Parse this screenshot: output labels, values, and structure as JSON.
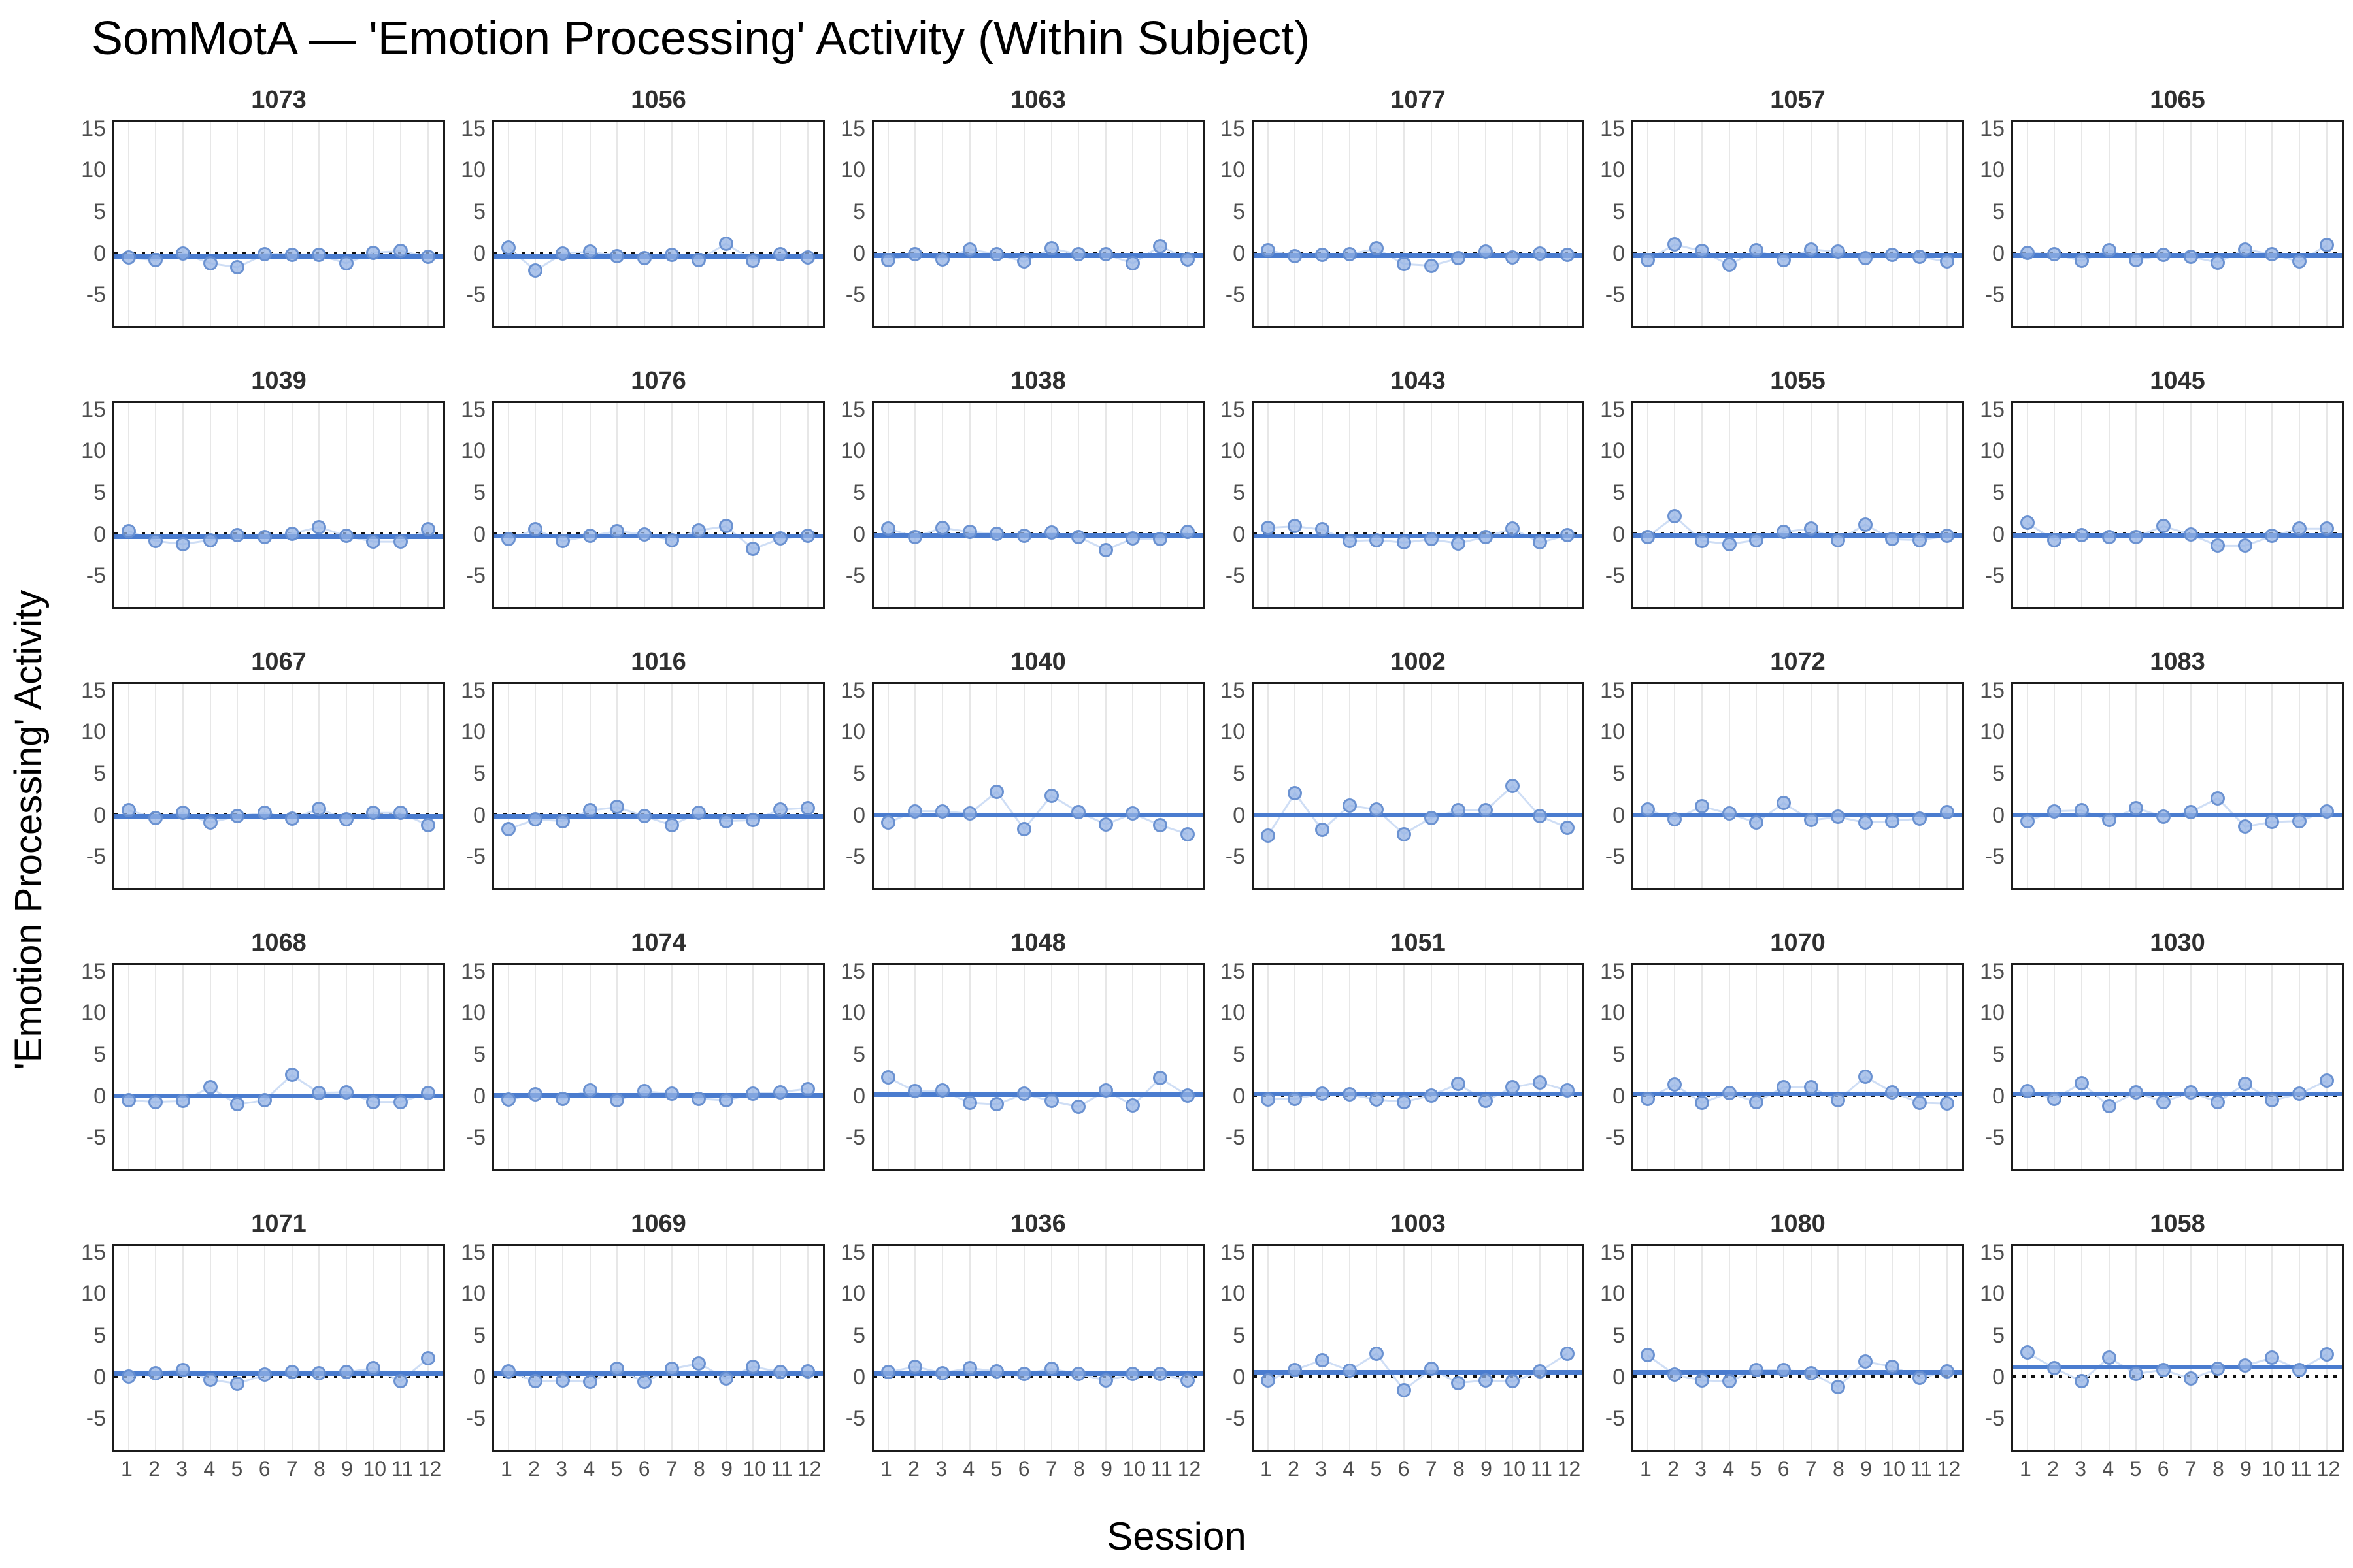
{
  "title": "SomMotA — 'Emotion Processing' Activity (Within Subject)",
  "x_axis_label": "Session",
  "y_axis_label": "'Emotion Processing' Activity",
  "chart_data": {
    "type": "scatter",
    "layout": "facet-grid 6 cols x 5 rows, one panel per subject",
    "x": [
      1,
      2,
      3,
      4,
      5,
      6,
      7,
      8,
      9,
      10,
      11,
      12
    ],
    "x_tick_labels": [
      "1",
      "2",
      "3",
      "4",
      "5",
      "6",
      "7",
      "8",
      "9",
      "10",
      "11",
      "12"
    ],
    "y_tick_values": [
      15,
      10,
      5,
      0,
      -5
    ],
    "y_tick_labels": [
      "15",
      "10",
      "5",
      "0",
      "-5"
    ],
    "ylim": [
      -9,
      16
    ],
    "grid": "vertical session gridlines only",
    "zero_reference_line": 0,
    "legend": "none",
    "facets": [
      {
        "id": "1073",
        "values": [
          -0.6,
          -0.9,
          -0.1,
          -1.3,
          -1.8,
          -0.2,
          -0.3,
          -0.3,
          -1.3,
          0.0,
          0.2,
          -0.5
        ],
        "trend": -0.5
      },
      {
        "id": "1056",
        "values": [
          0.6,
          -2.2,
          -0.1,
          0.1,
          -0.4,
          -0.7,
          -0.3,
          -0.9,
          1.1,
          -1.0,
          -0.2,
          -0.6
        ],
        "trend": -0.45
      },
      {
        "id": "1063",
        "values": [
          -0.9,
          -0.2,
          -0.8,
          0.4,
          -0.2,
          -1.1,
          0.5,
          -0.2,
          -0.2,
          -1.3,
          0.8,
          -0.8
        ],
        "trend": -0.4
      },
      {
        "id": "1077",
        "values": [
          0.3,
          -0.4,
          -0.3,
          -0.2,
          0.5,
          -1.4,
          -1.6,
          -0.7,
          0.1,
          -0.6,
          -0.1,
          -0.3
        ],
        "trend": -0.4
      },
      {
        "id": "1057",
        "values": [
          -0.9,
          1.0,
          0.2,
          -1.5,
          0.3,
          -0.9,
          0.4,
          0.1,
          -0.7,
          -0.3,
          -0.5,
          -1.1
        ],
        "trend": -0.4
      },
      {
        "id": "1065",
        "values": [
          0.0,
          -0.2,
          -1.0,
          0.3,
          -0.9,
          -0.3,
          -0.5,
          -1.2,
          0.4,
          -0.2,
          -1.1,
          0.9
        ],
        "trend": -0.4
      },
      {
        "id": "1039",
        "values": [
          0.3,
          -0.9,
          -1.3,
          -0.8,
          -0.2,
          -0.4,
          0.0,
          0.8,
          -0.3,
          -1.0,
          -1.0,
          0.5
        ],
        "trend": -0.4
      },
      {
        "id": "1076",
        "values": [
          -0.7,
          0.5,
          -0.9,
          -0.3,
          0.3,
          -0.1,
          -0.8,
          0.4,
          0.9,
          -1.9,
          -0.6,
          -0.3
        ],
        "trend": -0.3
      },
      {
        "id": "1038",
        "values": [
          0.6,
          -0.4,
          0.7,
          0.2,
          0.0,
          -0.3,
          0.1,
          -0.4,
          -2.0,
          -0.6,
          -0.7,
          0.2
        ],
        "trend": -0.25
      },
      {
        "id": "1043",
        "values": [
          0.7,
          0.9,
          0.5,
          -0.9,
          -0.8,
          -1.1,
          -0.7,
          -1.2,
          -0.4,
          0.6,
          -1.1,
          -0.2
        ],
        "trend": -0.3
      },
      {
        "id": "1055",
        "values": [
          -0.4,
          2.1,
          -0.9,
          -1.3,
          -0.8,
          0.2,
          0.6,
          -0.8,
          1.1,
          -0.7,
          -0.8,
          -0.3
        ],
        "trend": -0.25
      },
      {
        "id": "1045",
        "values": [
          1.3,
          -0.8,
          -0.2,
          -0.4,
          -0.4,
          0.9,
          -0.1,
          -1.5,
          -1.5,
          -0.3,
          0.6,
          0.6
        ],
        "trend": -0.2
      },
      {
        "id": "1067",
        "values": [
          0.5,
          -0.4,
          0.2,
          -1.0,
          -0.2,
          0.2,
          -0.5,
          0.7,
          -0.6,
          0.2,
          0.2,
          -1.3
        ],
        "trend": -0.2
      },
      {
        "id": "1016",
        "values": [
          -1.8,
          -0.6,
          -0.8,
          0.5,
          0.9,
          -0.2,
          -1.3,
          0.2,
          -0.8,
          -0.7,
          0.6,
          0.8
        ],
        "trend": -0.25
      },
      {
        "id": "1040",
        "values": [
          -1.0,
          0.4,
          0.4,
          0.1,
          2.8,
          -1.8,
          2.3,
          0.3,
          -1.2,
          0.1,
          -1.3,
          -2.4
        ],
        "trend": -0.1
      },
      {
        "id": "1002",
        "values": [
          -2.6,
          2.6,
          -1.9,
          1.1,
          0.6,
          -2.4,
          -0.4,
          0.5,
          0.5,
          3.5,
          -0.2,
          -1.6
        ],
        "trend": -0.1
      },
      {
        "id": "1072",
        "values": [
          0.6,
          -0.6,
          1.0,
          0.1,
          -1.0,
          1.4,
          -0.7,
          -0.3,
          -1.0,
          -0.8,
          -0.5,
          0.3
        ],
        "trend": -0.1
      },
      {
        "id": "1083",
        "values": [
          -0.8,
          0.4,
          0.5,
          -0.7,
          0.8,
          -0.3,
          0.3,
          2.0,
          -1.5,
          -0.9,
          -0.8,
          0.4
        ],
        "trend": -0.05
      },
      {
        "id": "1068",
        "values": [
          -0.6,
          -0.8,
          -0.7,
          1.0,
          -1.1,
          -0.6,
          2.5,
          0.3,
          0.4,
          -0.8,
          -0.8,
          0.3
        ],
        "trend": -0.05
      },
      {
        "id": "1074",
        "values": [
          -0.5,
          0.1,
          -0.4,
          0.6,
          -0.6,
          0.5,
          0.2,
          -0.4,
          -0.6,
          0.2,
          0.4,
          0.8
        ],
        "trend": 0.0
      },
      {
        "id": "1048",
        "values": [
          2.2,
          0.5,
          0.6,
          -0.9,
          -1.1,
          0.2,
          -0.7,
          -1.4,
          0.6,
          -1.2,
          2.1,
          0.0
        ],
        "trend": 0.1
      },
      {
        "id": "1051",
        "values": [
          -0.5,
          -0.4,
          0.2,
          0.1,
          -0.5,
          -0.8,
          0.0,
          1.4,
          -0.7,
          1.0,
          1.6,
          0.6
        ],
        "trend": 0.15
      },
      {
        "id": "1070",
        "values": [
          -0.4,
          1.3,
          -0.9,
          0.3,
          -0.8,
          1.0,
          1.0,
          -0.6,
          2.3,
          0.4,
          -0.9,
          -1.0
        ],
        "trend": 0.2
      },
      {
        "id": "1030",
        "values": [
          0.5,
          -0.4,
          1.5,
          -1.3,
          0.4,
          -0.8,
          0.4,
          -0.8,
          1.4,
          -0.6,
          0.2,
          1.8
        ],
        "trend": 0.2
      },
      {
        "id": "1071",
        "values": [
          0.0,
          0.4,
          0.8,
          -0.4,
          -0.9,
          0.2,
          0.5,
          0.4,
          0.5,
          1.0,
          -0.6,
          2.2
        ],
        "trend": 0.3
      },
      {
        "id": "1069",
        "values": [
          0.6,
          -0.6,
          -0.5,
          -0.7,
          0.9,
          -0.7,
          0.9,
          1.6,
          -0.3,
          1.2,
          0.5,
          0.6
        ],
        "trend": 0.35
      },
      {
        "id": "1036",
        "values": [
          0.5,
          1.2,
          0.4,
          1.0,
          0.6,
          0.3,
          0.9,
          0.3,
          -0.5,
          0.3,
          0.3,
          -0.5
        ],
        "trend": 0.35
      },
      {
        "id": "1003",
        "values": [
          -0.5,
          0.8,
          2.0,
          0.7,
          2.8,
          -1.7,
          0.9,
          -0.8,
          -0.5,
          -0.6,
          0.6,
          2.8
        ],
        "trend": 0.5
      },
      {
        "id": "1080",
        "values": [
          2.6,
          0.2,
          -0.5,
          -0.6,
          0.8,
          0.8,
          0.4,
          -1.3,
          1.8,
          1.2,
          -0.2,
          0.6
        ],
        "trend": 0.5
      },
      {
        "id": "1058",
        "values": [
          2.9,
          1.0,
          -0.6,
          2.3,
          0.3,
          0.8,
          -0.3,
          0.9,
          1.3,
          2.3,
          0.8,
          2.7
        ],
        "trend": 1.15
      }
    ],
    "colors": {
      "trend_line": "#4a7ccf",
      "point_fill": "#a9c4ec",
      "point_stroke": "#6b96d8",
      "connector_line": "#cfdef5",
      "zero_line": "#101010",
      "gridline": "#e7e7e7",
      "tick_text": "#4f4f4f",
      "facet_label_text": "#2f2f2f",
      "panel_border": "#1b1b1b",
      "background": "#ffffff"
    }
  }
}
